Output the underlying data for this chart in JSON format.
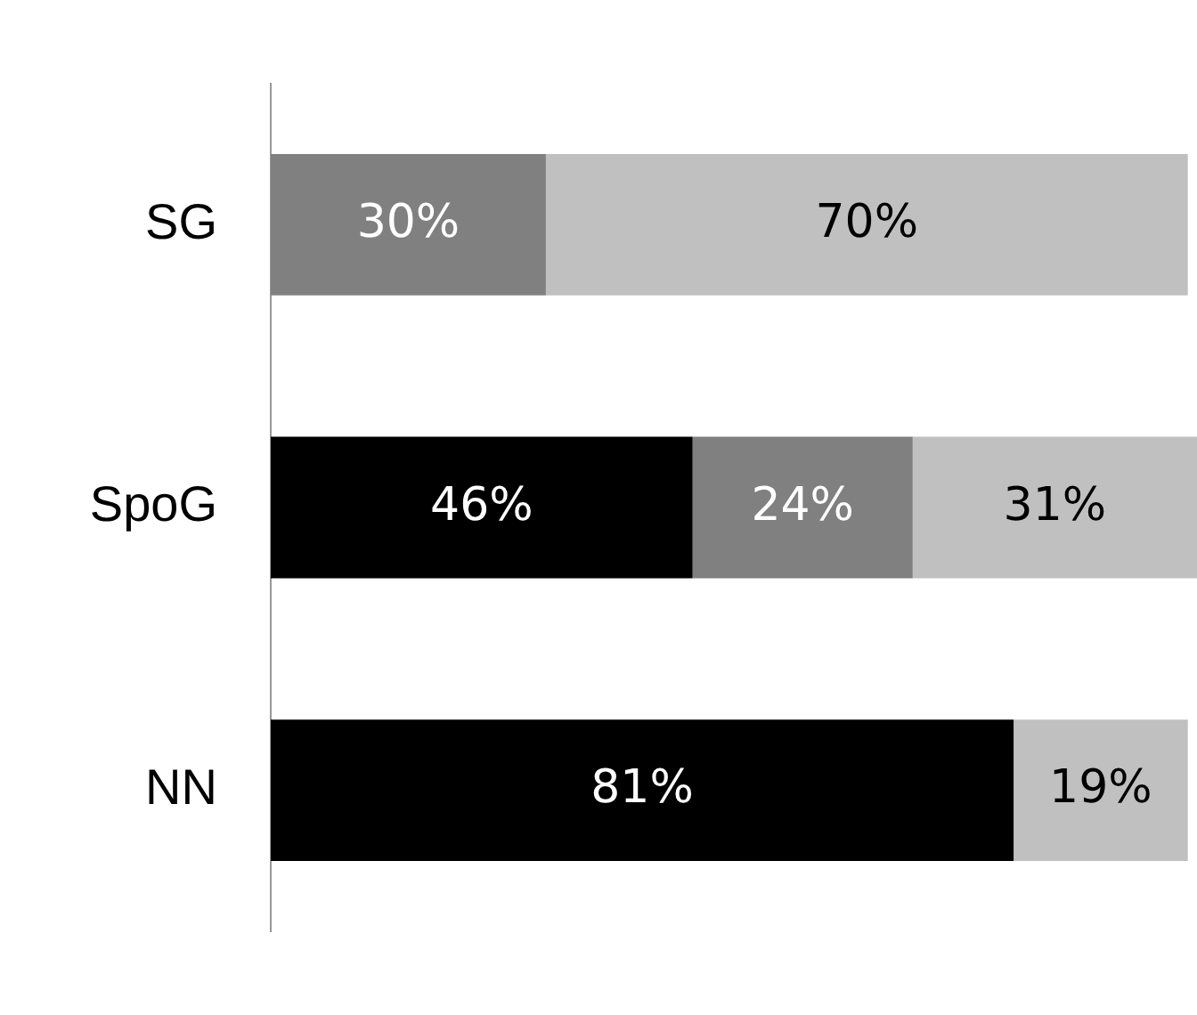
{
  "chart_data": {
    "type": "bar",
    "orientation": "horizontal",
    "stacked": true,
    "categories": [
      "SG",
      "SpoG",
      "NN"
    ],
    "series": [
      {
        "color": "#000000",
        "values": [
          null,
          46,
          81
        ],
        "value_labels": [
          null,
          "46%",
          "81%"
        ]
      },
      {
        "color": "#808080",
        "values": [
          30,
          24,
          null
        ],
        "value_labels": [
          "30%",
          "24%",
          null
        ]
      },
      {
        "color": "#c0c0c0",
        "values": [
          70,
          31,
          19
        ],
        "value_labels": [
          "70%",
          "31%",
          "19%"
        ]
      }
    ],
    "legend": false,
    "tick_labels": "y"
  }
}
